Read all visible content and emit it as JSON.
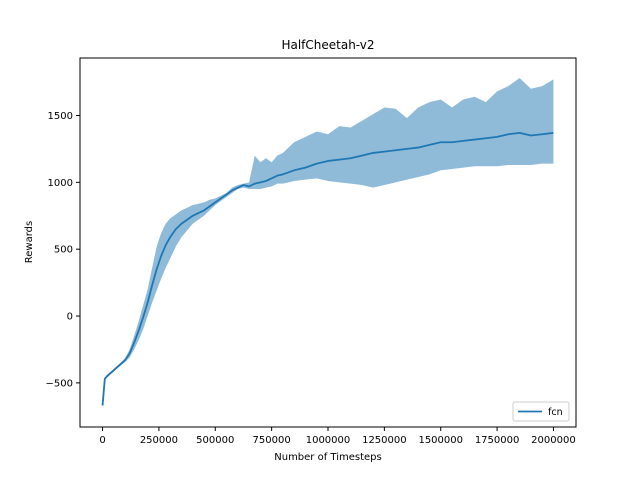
{
  "chart_data": {
    "type": "line",
    "title": "HalfCheetah-v2",
    "xlabel": "Number of Timesteps",
    "ylabel": "Rewards",
    "xlim": [
      -100000,
      2100000
    ],
    "ylim": [
      -830,
      1930
    ],
    "xticks": [
      0,
      250000,
      500000,
      750000,
      1000000,
      1250000,
      1500000,
      1750000,
      2000000
    ],
    "xtick_labels": [
      "0",
      "250000",
      "500000",
      "750000",
      "1000000",
      "1250000",
      "1500000",
      "1750000",
      "2000000"
    ],
    "yticks": [
      -500,
      0,
      500,
      1000,
      1500
    ],
    "ytick_labels": [
      "−500",
      "0",
      "500",
      "1000",
      "1500"
    ],
    "grid": false,
    "legend_position": "lower-right",
    "series": [
      {
        "name": "fcn",
        "color": "#1f77b4",
        "band_color": "#1f77b4",
        "x": [
          0,
          10000,
          20000,
          40000,
          60000,
          80000,
          100000,
          120000,
          140000,
          160000,
          180000,
          200000,
          220000,
          240000,
          260000,
          280000,
          300000,
          325000,
          350000,
          375000,
          400000,
          425000,
          450000,
          475000,
          500000,
          525000,
          550000,
          575000,
          600000,
          625000,
          650000,
          675000,
          700000,
          725000,
          750000,
          775000,
          800000,
          850000,
          900000,
          950000,
          1000000,
          1050000,
          1100000,
          1150000,
          1200000,
          1250000,
          1300000,
          1350000,
          1400000,
          1450000,
          1500000,
          1550000,
          1600000,
          1650000,
          1700000,
          1750000,
          1800000,
          1850000,
          1900000,
          1950000,
          2000000
        ],
        "mean": [
          -670,
          -470,
          -450,
          -420,
          -390,
          -360,
          -330,
          -280,
          -200,
          -110,
          -10,
          100,
          230,
          350,
          450,
          530,
          590,
          650,
          690,
          720,
          750,
          770,
          790,
          820,
          850,
          880,
          910,
          940,
          960,
          980,
          970,
          990,
          1000,
          1010,
          1030,
          1050,
          1060,
          1090,
          1110,
          1140,
          1160,
          1170,
          1180,
          1200,
          1220,
          1230,
          1240,
          1250,
          1260,
          1280,
          1300,
          1300,
          1310,
          1320,
          1330,
          1340,
          1360,
          1370,
          1350,
          1360,
          1370
        ],
        "lower": [
          -670,
          -480,
          -460,
          -430,
          -400,
          -370,
          -345,
          -310,
          -250,
          -180,
          -100,
          0,
          100,
          190,
          280,
          360,
          430,
          520,
          590,
          640,
          690,
          720,
          750,
          790,
          830,
          860,
          890,
          920,
          950,
          960,
          950,
          950,
          950,
          960,
          970,
          990,
          990,
          1010,
          1020,
          1030,
          1010,
          1000,
          990,
          980,
          960,
          980,
          1000,
          1020,
          1040,
          1060,
          1090,
          1100,
          1110,
          1120,
          1120,
          1120,
          1130,
          1130,
          1130,
          1140,
          1140
        ],
        "upper": [
          -670,
          -460,
          -440,
          -410,
          -380,
          -350,
          -315,
          -250,
          -150,
          -40,
          80,
          200,
          360,
          520,
          620,
          690,
          730,
          760,
          790,
          810,
          830,
          840,
          850,
          870,
          880,
          900,
          920,
          960,
          980,
          990,
          1000,
          1200,
          1150,
          1180,
          1150,
          1200,
          1220,
          1300,
          1340,
          1380,
          1360,
          1420,
          1410,
          1460,
          1510,
          1560,
          1550,
          1480,
          1560,
          1600,
          1620,
          1560,
          1620,
          1640,
          1600,
          1680,
          1720,
          1780,
          1700,
          1720,
          1770
        ]
      }
    ]
  }
}
